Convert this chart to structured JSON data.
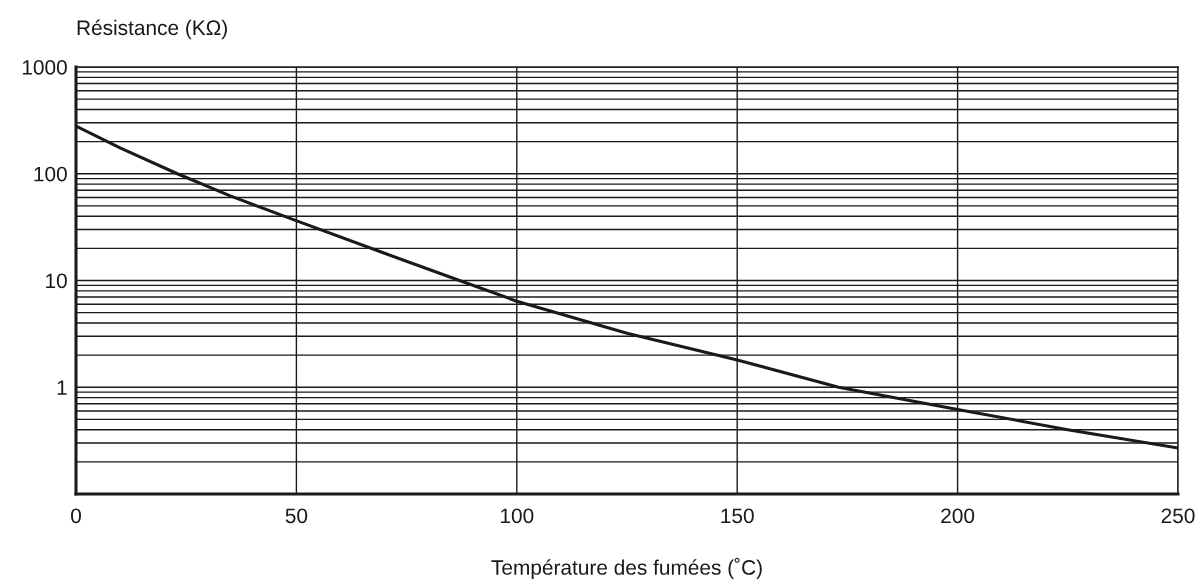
{
  "chart_data": {
    "type": "line",
    "xlabel": "Température des fumées (˚C)",
    "ylabel": "Résistance (KΩ)",
    "log": "y",
    "grid": true,
    "marker": "none",
    "line_style": "solid",
    "x": [
      0,
      10,
      23,
      35,
      51,
      70,
      87,
      100,
      125,
      150,
      173,
      200,
      225,
      250
    ],
    "series": [
      {
        "color": "#1a1a1a",
        "values": [
          280,
          175,
          100,
          62,
          35,
          18,
          10,
          6.4,
          3.2,
          1.8,
          1.0,
          0.62,
          0.4,
          0.27
        ]
      }
    ],
    "xlim": [
      0,
      250
    ],
    "xticks": [
      0,
      50,
      100,
      150,
      200,
      250
    ],
    "ylim": [
      0.1,
      1000
    ],
    "yticks": [
      {
        "value": 0.2,
        "label": null
      },
      {
        "value": 0.3,
        "label": null
      },
      {
        "value": 0.4,
        "label": null
      },
      {
        "value": 0.5,
        "label": null
      },
      {
        "value": 0.6,
        "label": null
      },
      {
        "value": 0.7,
        "label": null
      },
      {
        "value": 0.8,
        "label": null
      },
      {
        "value": 0.9,
        "label": null
      },
      1,
      {
        "value": 2,
        "label": null
      },
      {
        "value": 3,
        "label": null
      },
      {
        "value": 4,
        "label": null
      },
      {
        "value": 5,
        "label": null
      },
      {
        "value": 6,
        "label": null
      },
      {
        "value": 7,
        "label": null
      },
      {
        "value": 8,
        "label": null
      },
      {
        "value": 9,
        "label": null
      },
      10,
      {
        "value": 20,
        "label": null
      },
      {
        "value": 30,
        "label": null
      },
      {
        "value": 40,
        "label": null
      },
      {
        "value": 50,
        "label": null
      },
      {
        "value": 60,
        "label": null
      },
      {
        "value": 70,
        "label": null
      },
      {
        "value": 80,
        "label": null
      },
      {
        "value": 90,
        "label": null
      },
      100,
      {
        "value": 200,
        "label": null
      },
      {
        "value": 300,
        "label": null
      },
      {
        "value": 400,
        "label": null
      },
      {
        "value": 500,
        "label": null
      },
      {
        "value": 600,
        "label": null
      },
      {
        "value": 700,
        "label": null
      },
      {
        "value": 800,
        "label": null
      },
      {
        "value": 900,
        "label": null
      },
      1000
    ]
  }
}
